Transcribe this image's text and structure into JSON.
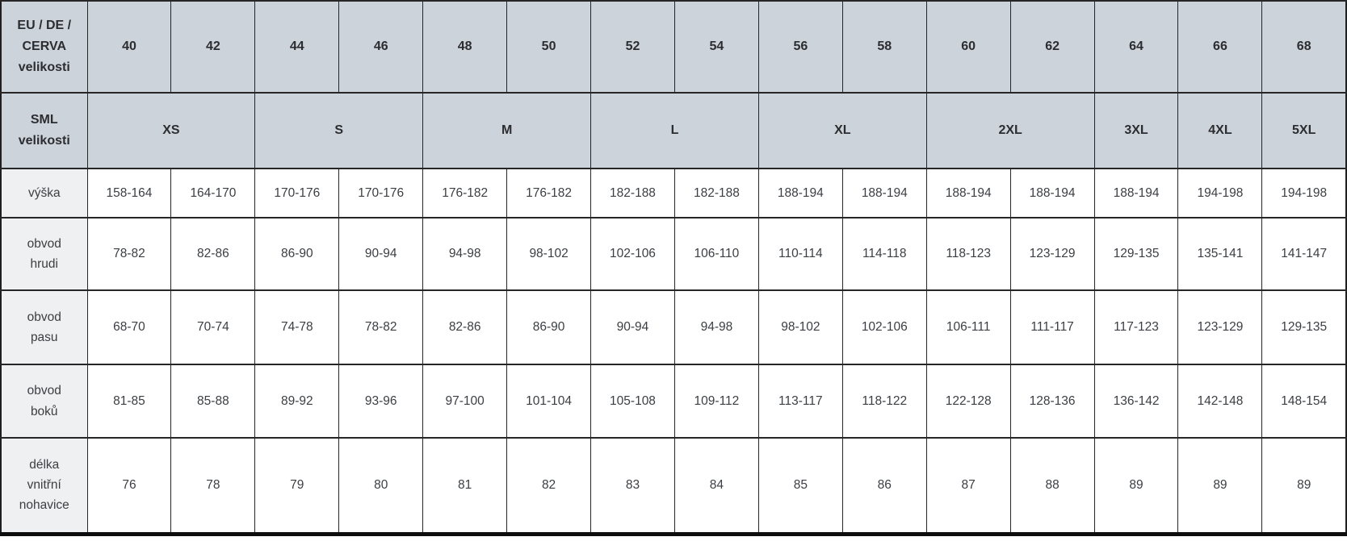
{
  "chart_data": {
    "type": "table",
    "corner_label_eu": "EU / DE /\nCERVA\nvelikosti",
    "eu_sizes": [
      "40",
      "42",
      "44",
      "46",
      "48",
      "50",
      "52",
      "54",
      "56",
      "58",
      "60",
      "62",
      "64",
      "66",
      "68"
    ],
    "corner_label_sml": "SML\nvelikosti",
    "sml_groups": [
      {
        "label": "XS",
        "eu_sizes": [
          "40",
          "42"
        ]
      },
      {
        "label": "S",
        "eu_sizes": [
          "44",
          "46"
        ]
      },
      {
        "label": "M",
        "eu_sizes": [
          "48",
          "50"
        ]
      },
      {
        "label": "L",
        "eu_sizes": [
          "52",
          "54"
        ]
      },
      {
        "label": "XL",
        "eu_sizes": [
          "56",
          "58"
        ]
      },
      {
        "label": "2XL",
        "eu_sizes": [
          "60",
          "62"
        ]
      },
      {
        "label": "3XL",
        "eu_sizes": [
          "64"
        ]
      },
      {
        "label": "4XL",
        "eu_sizes": [
          "66"
        ]
      },
      {
        "label": "5XL",
        "eu_sizes": [
          "68"
        ]
      }
    ],
    "measurement_rows": [
      {
        "label": "výška",
        "values": [
          "158-164",
          "164-170",
          "170-176",
          "170-176",
          "176-182",
          "176-182",
          "182-188",
          "182-188",
          "188-194",
          "188-194",
          "188-194",
          "188-194",
          "188-194",
          "194-198",
          "194-198"
        ]
      },
      {
        "label": "obvod\nhrudi",
        "values": [
          "78-82",
          "82-86",
          "86-90",
          "90-94",
          "94-98",
          "98-102",
          "102-106",
          "106-110",
          "110-114",
          "114-118",
          "118-123",
          "123-129",
          "129-135",
          "135-141",
          "141-147"
        ]
      },
      {
        "label": "obvod\npasu",
        "values": [
          "68-70",
          "70-74",
          "74-78",
          "78-82",
          "82-86",
          "86-90",
          "90-94",
          "94-98",
          "98-102",
          "102-106",
          "106-111",
          "111-117",
          "117-123",
          "123-129",
          "129-135"
        ]
      },
      {
        "label": "obvod\nboků",
        "values": [
          "81-85",
          "85-88",
          "89-92",
          "93-96",
          "97-100",
          "101-104",
          "105-108",
          "109-112",
          "113-117",
          "118-122",
          "122-128",
          "128-136",
          "136-142",
          "142-148",
          "148-154"
        ]
      },
      {
        "label": "délka\nvnitřní\nnohavice",
        "values": [
          "76",
          "78",
          "79",
          "80",
          "81",
          "82",
          "83",
          "84",
          "85",
          "86",
          "87",
          "88",
          "89",
          "89",
          "89"
        ]
      }
    ]
  },
  "colors": {
    "header_background": "#cdd3da",
    "label_column_background": "#eef0f1",
    "cell_background": "#ffffff",
    "border": "#262626",
    "header_text": "#2b2d31",
    "body_text": "#3b3e43"
  }
}
